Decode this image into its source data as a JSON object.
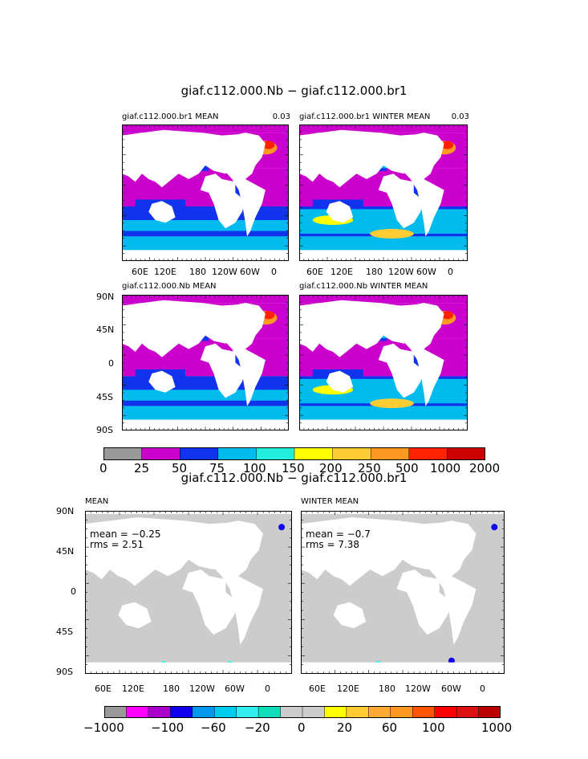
{
  "page": {
    "title_top": "giaf.c112.000.Nb − giaf.c112.000.br1",
    "title_diff": "giaf.c112.000.Nb − giaf.c112.000.br1"
  },
  "panels_top": [
    {
      "title": "giaf.c112.000.br1 MEAN",
      "corner": "0.03"
    },
    {
      "title": "giaf.c112.000.br1 WINTER MEAN",
      "corner": "0.03"
    },
    {
      "title": "giaf.c112.000.Nb MEAN",
      "corner": ""
    },
    {
      "title": "giaf.c112.000.Nb WINTER MEAN",
      "corner": ""
    }
  ],
  "panels_diff": [
    {
      "title": "MEAN",
      "mean": "mean = −0.25",
      "rms": "rms = 2.51"
    },
    {
      "title": "WINTER MEAN",
      "mean": "mean = −0.7",
      "rms": "rms = 7.38"
    }
  ],
  "lon_ticks": [
    "60E",
    "120E",
    "180",
    "120W",
    "60W",
    "0"
  ],
  "lat_ticks": [
    "90N",
    "45N",
    "0",
    "45S",
    "90S"
  ],
  "colorbar_top": {
    "labels": [
      "0",
      "25",
      "50",
      "75",
      "100",
      "150",
      "200",
      "250",
      "500",
      "1000",
      "2000"
    ],
    "colors": [
      "#999999",
      "#cc00cc",
      "#1133ee",
      "#00bbee",
      "#22eedd",
      "#ffff00",
      "#ffcc33",
      "#ff9922",
      "#ff2200",
      "#cc0000"
    ]
  },
  "colorbar_diff": {
    "labels": [
      "−1000",
      "−100",
      "−60",
      "−20",
      "0",
      "20",
      "60",
      "100",
      "1000"
    ],
    "colors": [
      "#999999",
      "#ff00ff",
      "#aa00cc",
      "#1100ee",
      "#0099ee",
      "#00ccee",
      "#33eeee",
      "#11ddbb",
      "#cccccc",
      "#cccccc",
      "#ffff00",
      "#ffcc33",
      "#ffaa33",
      "#ff9922",
      "#ff5500",
      "#ff0000",
      "#dd1111",
      "#bb0000"
    ]
  },
  "colors": {
    "land": "#ffffff",
    "missing": "#999999",
    "ocean_low": "#cc00cc",
    "ocean_mid": "#1133ee",
    "ocean_high": "#00bbee",
    "diff_zero": "#cccccc"
  }
}
